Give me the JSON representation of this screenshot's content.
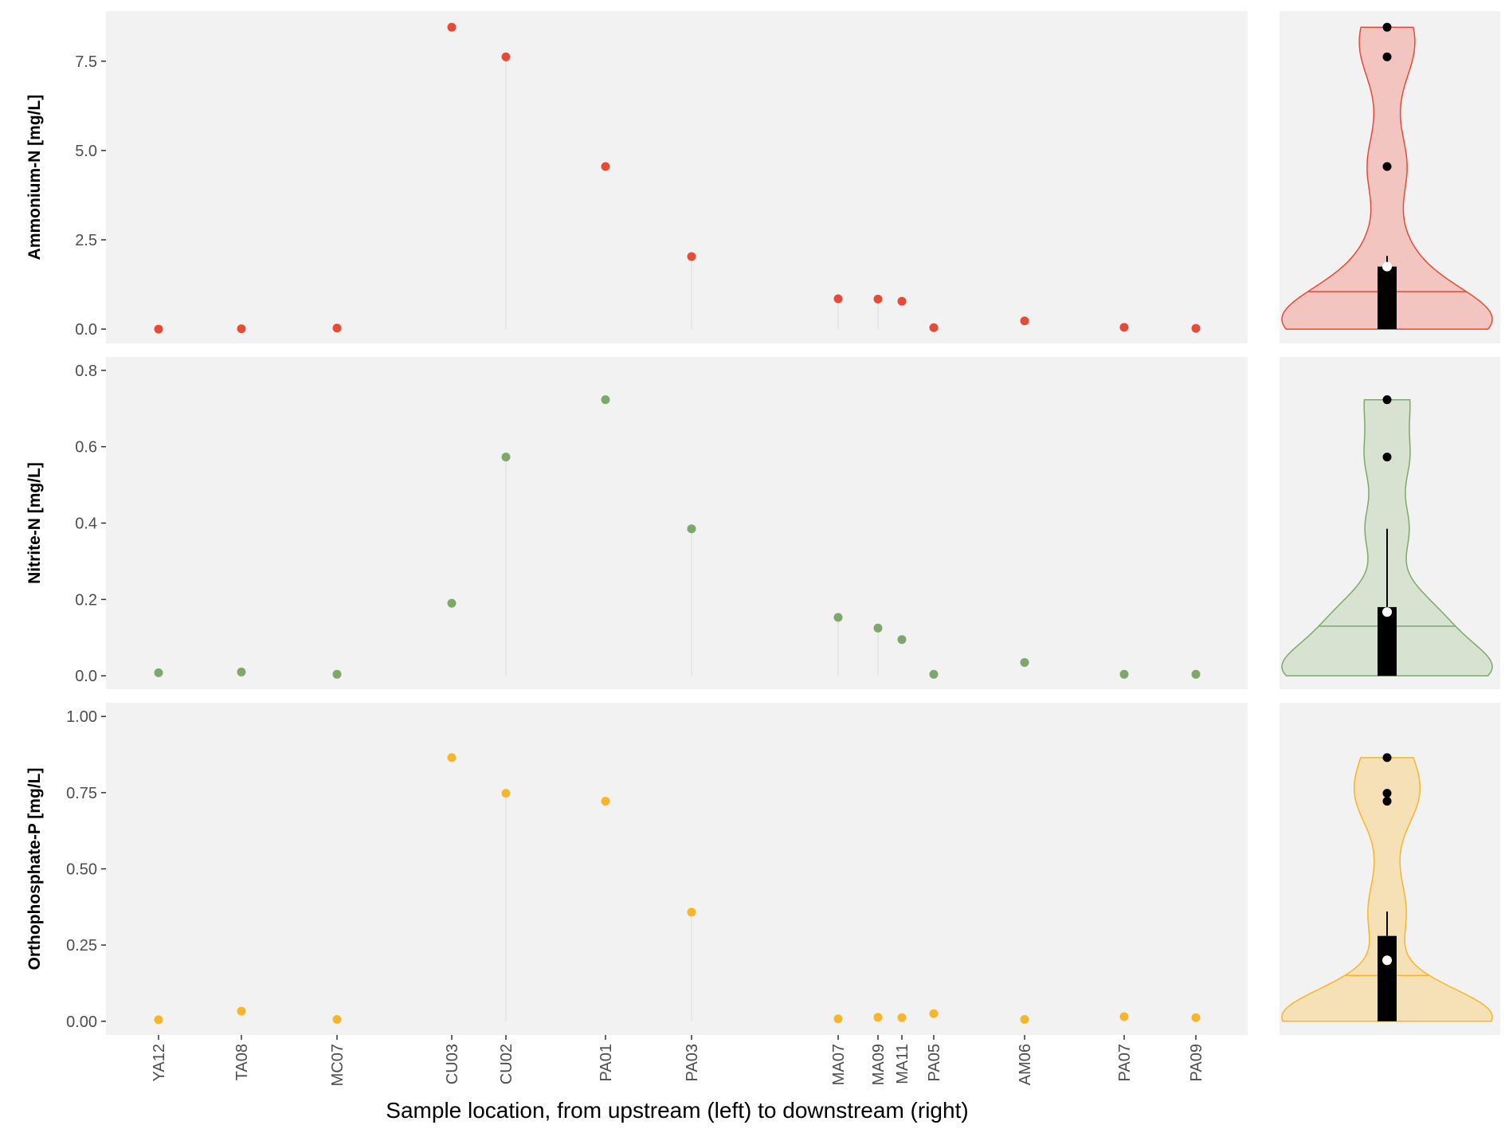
{
  "x_axis_title": "Sample location, from upstream (left) to downstream (right)",
  "chart_data": [
    {
      "type": "scatter",
      "ylabel": "Ammonium-N [mg/L]",
      "color": "#e64b35",
      "fill": "#f2c5c0",
      "ylim": [
        -0.4,
        8.9
      ],
      "y_ticks": [
        0.0,
        2.5,
        5.0,
        7.5
      ],
      "y_tick_labels": [
        "0.0",
        "2.5",
        "5.0",
        "7.5"
      ],
      "categories": [
        "YA12",
        "TA08",
        "MC07",
        "CU03",
        "CU02",
        "PA01",
        "PA03",
        "MA07",
        "MA09",
        "MA11",
        "PA05",
        "AM06",
        "PA07",
        "PA09"
      ],
      "values": [
        0.0,
        0.01,
        0.03,
        8.45,
        7.62,
        4.55,
        2.03,
        0.85,
        0.84,
        0.78,
        0.04,
        0.23,
        0.05,
        0.02
      ],
      "violin": {
        "median": 1.05,
        "q1": 0.0,
        "q3": 1.75,
        "whisker_max": 2.05,
        "mean": 1.75,
        "outliers": [
          8.45,
          7.62,
          4.55
        ]
      }
    },
    {
      "type": "scatter",
      "ylabel": "Nitrite-N [mg/L]",
      "color": "#7ea86b",
      "fill": "#d7e3d0",
      "ylim": [
        -0.035,
        0.835
      ],
      "y_ticks": [
        0.0,
        0.2,
        0.4,
        0.6,
        0.8
      ],
      "y_tick_labels": [
        "0.0",
        "0.2",
        "0.4",
        "0.6",
        "0.8"
      ],
      "categories": [
        "YA12",
        "TA08",
        "MC07",
        "CU03",
        "CU02",
        "PA01",
        "PA03",
        "MA07",
        "MA09",
        "MA11",
        "PA05",
        "AM06",
        "PA07",
        "PA09"
      ],
      "values": [
        0.008,
        0.01,
        0.004,
        0.19,
        0.573,
        0.723,
        0.385,
        0.153,
        0.125,
        0.095,
        0.004,
        0.035,
        0.004,
        0.004
      ],
      "violin": {
        "median": 0.13,
        "q1": 0.0,
        "q3": 0.18,
        "whisker_max": 0.385,
        "mean": 0.167,
        "outliers": [
          0.723,
          0.573
        ]
      }
    },
    {
      "type": "scatter",
      "ylabel": "Orthophosphate-P [mg/L]",
      "color": "#f7b52b",
      "fill": "#f6e1b7",
      "ylim": [
        -0.045,
        1.045
      ],
      "y_ticks": [
        0.0,
        0.25,
        0.5,
        0.75,
        1.0
      ],
      "y_tick_labels": [
        "0.00",
        "0.25",
        "0.50",
        "0.75",
        "1.00"
      ],
      "categories": [
        "YA12",
        "TA08",
        "MC07",
        "CU03",
        "CU02",
        "PA01",
        "PA03",
        "MA07",
        "MA09",
        "MA11",
        "PA05",
        "AM06",
        "PA07",
        "PA09"
      ],
      "values": [
        0.005,
        0.033,
        0.006,
        0.865,
        0.748,
        0.722,
        0.358,
        0.008,
        0.013,
        0.012,
        0.025,
        0.006,
        0.015,
        0.012
      ],
      "violin": {
        "median": 0.15,
        "q1": 0.0,
        "q3": 0.28,
        "whisker_max": 0.36,
        "mean": 0.2,
        "outliers": [
          0.865,
          0.748,
          0.722
        ]
      }
    }
  ]
}
